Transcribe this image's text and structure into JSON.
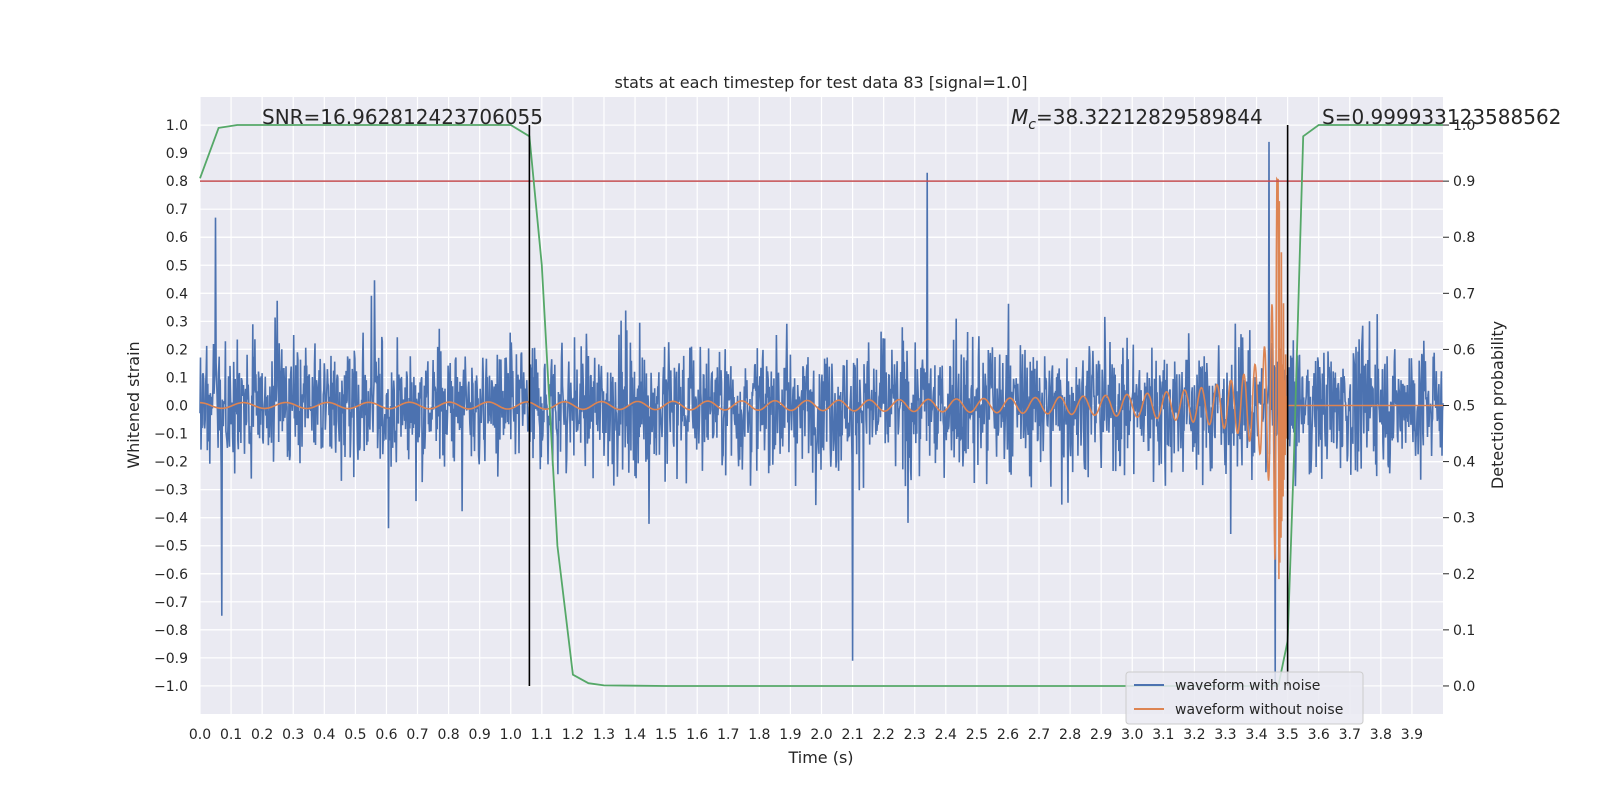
{
  "chart_data": {
    "type": "line",
    "title": "stats at each timestep for test data 83 [signal=1.0]",
    "xlabel": "Time (s)",
    "ylabel": "Whitened strain",
    "y2label": "Detection probability",
    "xlim": [
      0.0,
      4.0
    ],
    "ylim": [
      -1.1,
      1.1
    ],
    "y2lim": [
      -0.05,
      1.05
    ],
    "grid": true,
    "background": "#eaeaf2",
    "x_ticks": [
      "0.0",
      "0.1",
      "0.2",
      "0.3",
      "0.4",
      "0.5",
      "0.6",
      "0.7",
      "0.8",
      "0.9",
      "1.0",
      "1.1",
      "1.2",
      "1.3",
      "1.4",
      "1.5",
      "1.6",
      "1.7",
      "1.8",
      "1.9",
      "2.0",
      "2.1",
      "2.2",
      "2.3",
      "2.4",
      "2.5",
      "2.6",
      "2.7",
      "2.8",
      "2.9",
      "3.0",
      "3.1",
      "3.2",
      "3.3",
      "3.4",
      "3.5",
      "3.6",
      "3.7",
      "3.8",
      "3.9"
    ],
    "y_ticks": [
      "1.0",
      "0.9",
      "0.8",
      "0.7",
      "0.6",
      "0.5",
      "0.4",
      "0.3",
      "0.2",
      "0.1",
      "0.0",
      "−0.1",
      "−0.2",
      "−0.3",
      "−0.4",
      "−0.5",
      "−0.6",
      "−0.7",
      "−0.8",
      "−0.9",
      "−1.0"
    ],
    "y2_ticks": [
      "1.0",
      "0.9",
      "0.8",
      "0.7",
      "0.6",
      "0.5",
      "0.4",
      "0.3",
      "0.2",
      "0.1",
      "0.0"
    ],
    "annotations": {
      "snr": "SNR=16.962812423706055",
      "mc_symbol": "M",
      "mc_sub": "c",
      "mc_value": "=38.32212829589844",
      "s": "S=0.999933123588562"
    },
    "vertical_lines": [
      1.06,
      3.5
    ],
    "threshold": {
      "value": 0.9,
      "axis": "right",
      "color": "#c44e52"
    },
    "legend": {
      "placement": "lower-right",
      "entries": [
        "waveform with noise",
        "waveform without noise"
      ]
    },
    "series": [
      {
        "name": "waveform with noise",
        "color": "#4c72b0",
        "kind": "noise",
        "typical_amplitude": 0.22,
        "peak_extremes": [
          [
            0.05,
            0.67
          ],
          [
            0.07,
            -0.75
          ],
          [
            2.34,
            0.83
          ],
          [
            2.1,
            -0.91
          ],
          [
            3.46,
            -1.0
          ],
          [
            3.44,
            0.94
          ]
        ]
      },
      {
        "name": "waveform without noise",
        "color": "#dd8452",
        "kind": "chirp",
        "start_amplitude": 0.01,
        "merger_time": 3.47,
        "peak_amplitude": 0.82
      },
      {
        "name": "detection probability",
        "color": "#55a868",
        "axis": "right",
        "x": [
          0.0,
          0.06,
          0.12,
          0.5,
          0.9,
          1.0,
          1.06,
          1.1,
          1.15,
          1.2,
          1.25,
          1.3,
          1.5,
          2.0,
          3.4,
          3.47,
          3.5,
          3.52,
          3.55,
          3.6,
          3.9,
          4.0
        ],
        "y": [
          0.905,
          0.995,
          1.0,
          1.0,
          1.0,
          1.0,
          0.98,
          0.75,
          0.25,
          0.02,
          0.005,
          0.001,
          0.0,
          0.0,
          0.0,
          0.0,
          0.08,
          0.4,
          0.98,
          1.0,
          1.0,
          1.0
        ]
      }
    ]
  }
}
